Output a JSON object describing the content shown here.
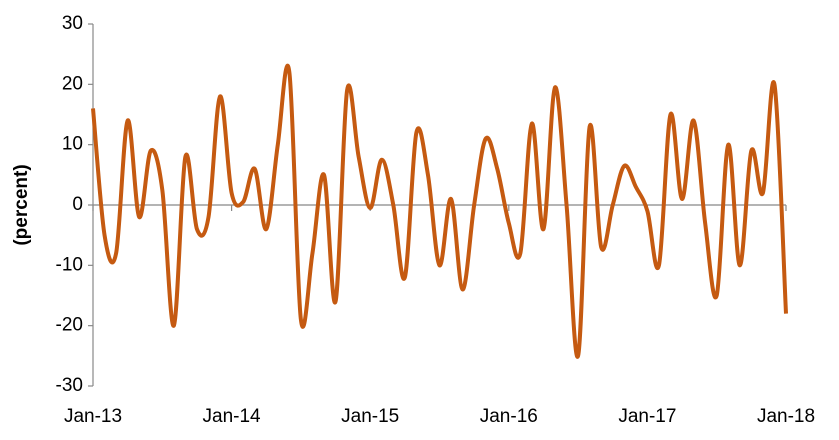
{
  "chart_data": {
    "type": "line",
    "y_label": "(percent)",
    "categories": [
      "Jan-13",
      null,
      null,
      null,
      null,
      null,
      null,
      null,
      null,
      null,
      null,
      null,
      "Jan-14",
      null,
      null,
      null,
      null,
      null,
      null,
      null,
      null,
      null,
      null,
      null,
      "Jan-15",
      null,
      null,
      null,
      null,
      null,
      null,
      null,
      null,
      null,
      null,
      null,
      "Jan-16",
      null,
      null,
      null,
      null,
      null,
      null,
      null,
      null,
      null,
      null,
      null,
      "Jan-17",
      null,
      null,
      null,
      null,
      null,
      null,
      null,
      null,
      null,
      null,
      null,
      "Jan-18"
    ],
    "series": [
      {
        "name": "(percent)",
        "color": "#c55a11",
        "values": [
          16,
          -5,
          -8,
          14,
          -2,
          9,
          2.5,
          -20,
          8,
          -4,
          -2,
          18,
          2,
          0.5,
          6,
          -4,
          10,
          22,
          -19,
          -8,
          5,
          -16,
          19,
          8,
          -0.5,
          7.5,
          0,
          -12,
          12,
          5,
          -10,
          1,
          -14,
          0,
          11,
          6,
          -3,
          -8,
          13.5,
          -4,
          19.5,
          0,
          -25,
          13,
          -7,
          0,
          6.5,
          3,
          -1,
          -10,
          15,
          1,
          14,
          -3,
          -15,
          10,
          -10,
          9,
          2,
          20,
          -18
        ]
      }
    ],
    "ylim": [
      -30,
      30
    ],
    "yticks": [
      -30,
      -20,
      -10,
      0,
      10,
      20,
      30
    ]
  }
}
